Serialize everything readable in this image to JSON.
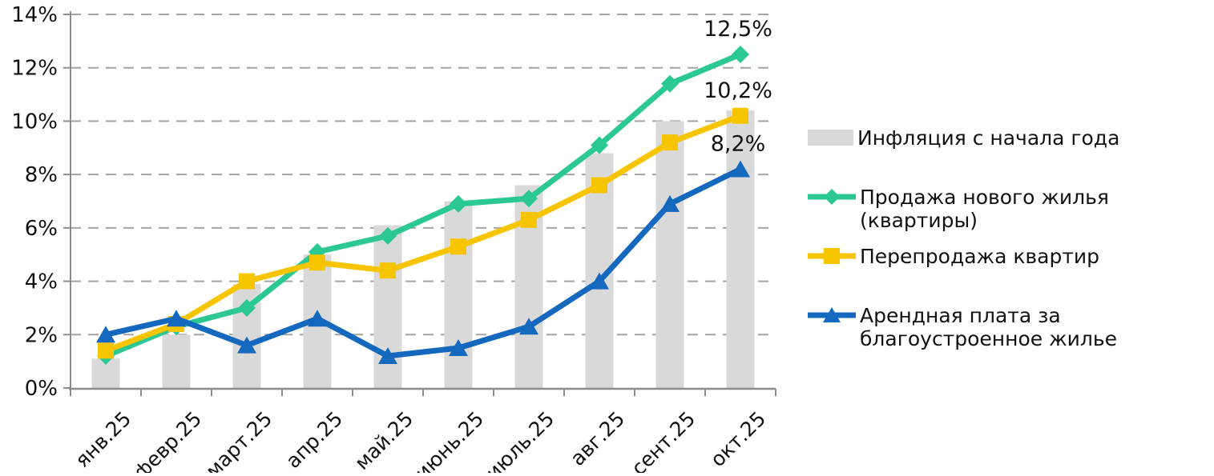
{
  "chart_data": {
    "type": "bar+line combo",
    "title": "",
    "categories": [
      "янв.25",
      "февр.25",
      "март.25",
      "апр.25",
      "май.25",
      "июнь.25",
      "июль.25",
      "авг.25",
      "сент.25",
      "окт.25"
    ],
    "y_axis": {
      "min": 0,
      "max": 14,
      "step": 2,
      "tick_labels": [
        "0%",
        "2%",
        "4%",
        "6%",
        "8%",
        "10%",
        "12%",
        "14%"
      ],
      "gridlines": "dashed horizontal"
    },
    "bar_series": {
      "name": "Инфляция с начала года",
      "color": "#D9D9D9",
      "values": [
        1.1,
        2.0,
        3.9,
        5.0,
        6.1,
        7.0,
        7.6,
        8.8,
        10.0,
        10.4
      ]
    },
    "line_series": [
      {
        "name": "Продажа нового жилья (квартиры)",
        "color": "#2BC894",
        "marker": "diamond",
        "values": [
          1.2,
          2.3,
          3.0,
          5.1,
          5.7,
          6.9,
          7.1,
          9.1,
          11.4,
          12.5
        ],
        "end_label": "12,5%"
      },
      {
        "name": "Перепродажа квартир",
        "color": "#F6C500",
        "marker": "square",
        "values": [
          1.4,
          2.4,
          4.0,
          4.7,
          4.4,
          5.3,
          6.3,
          7.6,
          9.2,
          10.2
        ],
        "end_label": "10,2%"
      },
      {
        "name": "Арендная плата за благоустроенное жилье",
        "color": "#1469BE",
        "marker": "triangle",
        "values": [
          2.0,
          2.6,
          1.6,
          2.6,
          1.2,
          1.5,
          2.3,
          4.0,
          6.9,
          8.2
        ],
        "end_label": "8,2%"
      }
    ],
    "legend_position": "right",
    "axis_color": "#8C8C8C",
    "grid_color": "#A3A3A3",
    "text_color": "#111111"
  }
}
